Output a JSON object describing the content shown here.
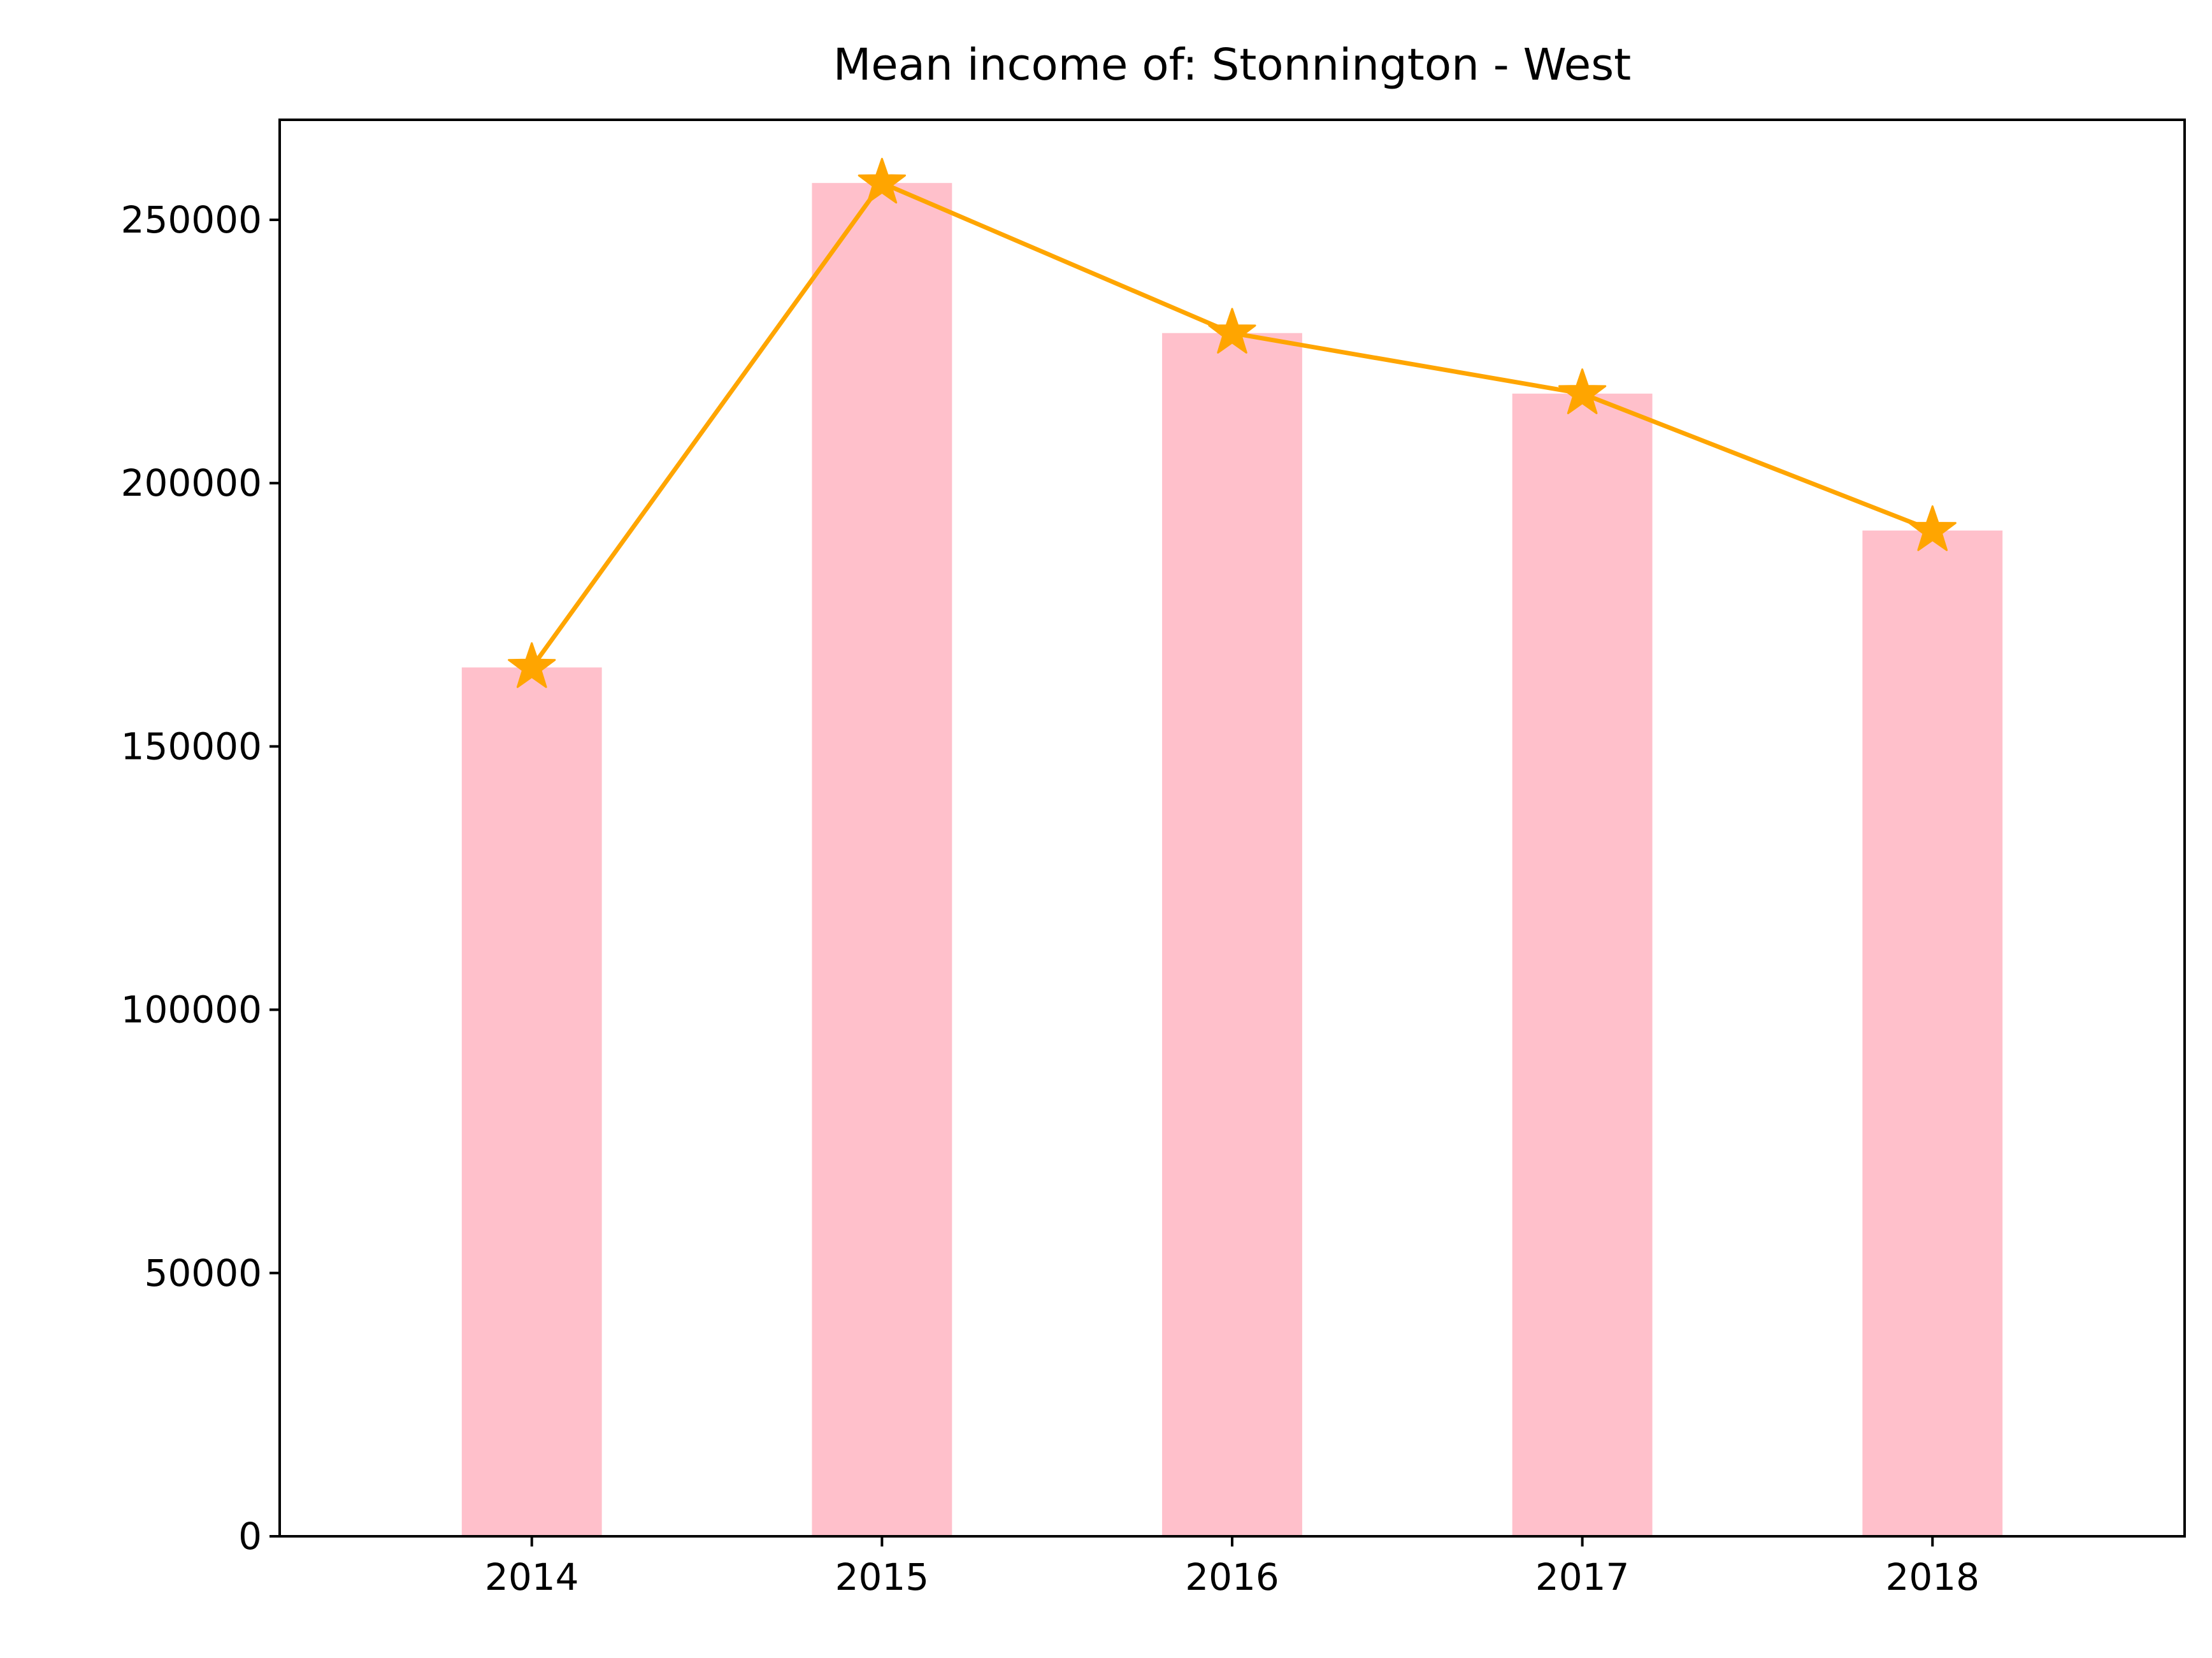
{
  "chart_data": {
    "type": "bar",
    "title": "Mean income of: Stonnington - West",
    "xlabel": "",
    "ylabel": "",
    "categories": [
      "2014",
      "2015",
      "2016",
      "2017",
      "2018"
    ],
    "series": [
      {
        "kind": "bar",
        "values": [
          165000,
          257000,
          228500,
          217000,
          191000
        ],
        "color": "#FFC0CB"
      },
      {
        "kind": "line",
        "marker": "star",
        "values": [
          165000,
          257000,
          228500,
          217000,
          191000
        ],
        "color": "#FFA500"
      }
    ],
    "ylim": [
      0,
      269000
    ],
    "yticks": [
      0,
      50000,
      100000,
      150000,
      200000,
      250000
    ],
    "ytick_labels": [
      "0",
      "50000",
      "100000",
      "150000",
      "200000",
      "250000"
    ],
    "grid": false,
    "legend": "none"
  }
}
